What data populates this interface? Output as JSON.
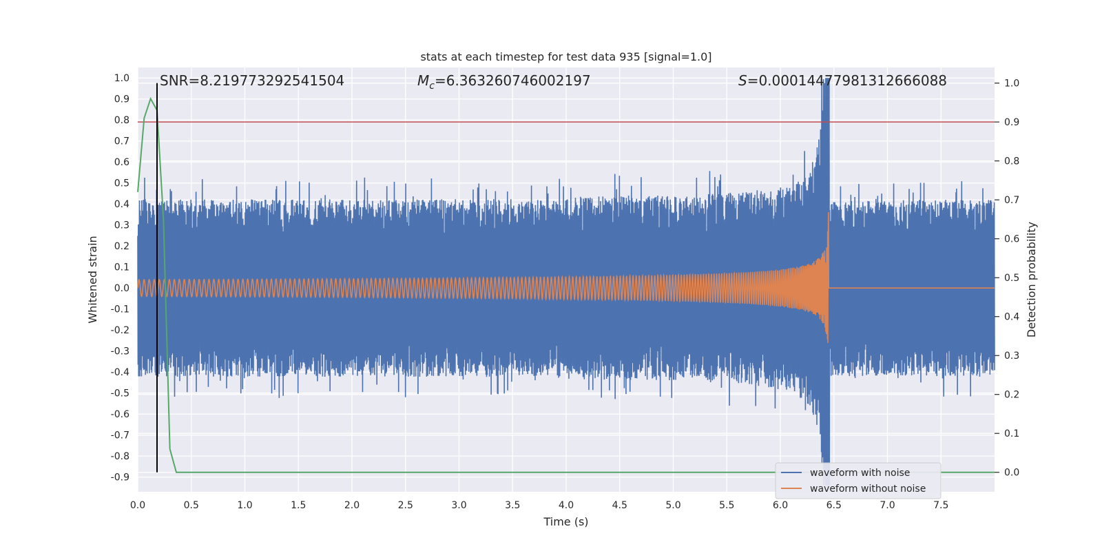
{
  "chart_data": {
    "type": "line",
    "title": "stats at each timestep for test data 935 [signal=1.0]",
    "xlabel": "Time (s)",
    "ylabel": "Whitened strain",
    "y2label": "Detection probability",
    "xlim": [
      0.0,
      8.0
    ],
    "ylim": [
      -0.97,
      1.05
    ],
    "y2lim": [
      -0.05,
      1.04
    ],
    "xticks": [
      "0.0",
      "0.5",
      "1.0",
      "1.5",
      "2.0",
      "2.5",
      "3.0",
      "3.5",
      "4.0",
      "4.5",
      "5.0",
      "5.5",
      "6.0",
      "6.5",
      "7.0",
      "7.5"
    ],
    "yticks": [
      "1.0",
      "0.9",
      "0.8",
      "0.7",
      "0.6",
      "0.5",
      "0.4",
      "0.3",
      "0.2",
      "0.1",
      "0.0",
      "-0.1",
      "-0.2",
      "-0.3",
      "-0.4",
      "-0.5",
      "-0.6",
      "-0.7",
      "-0.8",
      "-0.9"
    ],
    "y2ticks": [
      "1.0",
      "0.9",
      "0.8",
      "0.7",
      "0.6",
      "0.5",
      "0.4",
      "0.3",
      "0.2",
      "0.1",
      "0.0"
    ],
    "grid": true,
    "annotations": {
      "snr": "SNR=8.219773292541504",
      "mc_symbol": "M",
      "mc_sub": "c",
      "mc_value": "=6.363260746002197",
      "s_symbol": "S",
      "s_value": "=0.00014477981312666088"
    },
    "legend": {
      "placement": "lower-right",
      "entries": [
        "waveform with noise",
        "waveform without noise"
      ]
    },
    "colors": {
      "noise": "#4c72b0",
      "clean": "#dd8452",
      "probability": "#55a868",
      "threshold": "#c44e52",
      "marker": "#000000",
      "background": "#eaeaf2",
      "grid": "#ffffff"
    },
    "series": [
      {
        "name": "waveform with noise",
        "axis": "left",
        "envelope": {
          "base_amplitude": 0.42,
          "peak_time": 6.44,
          "peak_amplitude": 1.0
        }
      },
      {
        "name": "waveform without noise",
        "axis": "left",
        "chirp": {
          "start_amplitude": 0.04,
          "end_time": 6.45,
          "end_amplitude": 0.6
        }
      },
      {
        "name": "detection probability",
        "axis": "right",
        "x": [
          0.0,
          0.06,
          0.12,
          0.18,
          0.24,
          0.3,
          0.36,
          0.42,
          8.0
        ],
        "values": [
          0.72,
          0.91,
          0.96,
          0.93,
          0.65,
          0.06,
          0.0,
          0.0,
          0.0
        ]
      }
    ],
    "threshold": {
      "axis": "right",
      "value": 0.9
    },
    "vertical_marker": {
      "x": 0.18,
      "y2_range": [
        0.0,
        1.0
      ]
    }
  }
}
